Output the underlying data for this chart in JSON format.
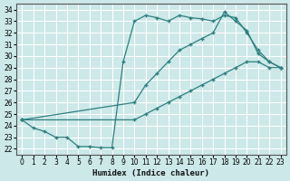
{
  "xlabel": "Humidex (Indice chaleur)",
  "bg_color": "#cce8e8",
  "grid_color": "#ffffff",
  "line_color": "#2d7f7f",
  "xlim": [
    -0.5,
    23.5
  ],
  "ylim": [
    21.5,
    34.5
  ],
  "xticks": [
    0,
    1,
    2,
    3,
    4,
    5,
    6,
    7,
    8,
    9,
    10,
    11,
    12,
    13,
    14,
    15,
    16,
    17,
    18,
    19,
    20,
    21,
    22,
    23
  ],
  "yticks": [
    22,
    23,
    24,
    25,
    26,
    27,
    28,
    29,
    30,
    31,
    32,
    33,
    34
  ],
  "line1_x": [
    0,
    1,
    2,
    3,
    4,
    5,
    6,
    7,
    8,
    9,
    10,
    11,
    12,
    13,
    14,
    15,
    16,
    17,
    18,
    19,
    20,
    21,
    22,
    23
  ],
  "line1_y": [
    24.5,
    23.8,
    23.5,
    23.0,
    23.0,
    22.2,
    22.2,
    22.1,
    22.1,
    29.5,
    33.0,
    33.5,
    33.3,
    33.0,
    33.5,
    33.3,
    33.2,
    33.0,
    33.5,
    33.3,
    32.0,
    30.5,
    29.5,
    29.0
  ],
  "line2_x": [
    0,
    10,
    11,
    12,
    13,
    14,
    15,
    16,
    17,
    18,
    19,
    20,
    21,
    22,
    23
  ],
  "line2_y": [
    24.5,
    26.0,
    27.5,
    28.5,
    29.5,
    30.5,
    31.0,
    31.5,
    32.0,
    33.8,
    33.0,
    32.2,
    30.2,
    29.5,
    29.0
  ],
  "line3_x": [
    0,
    10,
    11,
    12,
    13,
    14,
    15,
    16,
    17,
    18,
    19,
    20,
    21,
    22,
    23
  ],
  "line3_y": [
    24.5,
    24.5,
    25.0,
    25.5,
    26.0,
    26.5,
    27.0,
    27.5,
    28.0,
    28.5,
    29.0,
    29.5,
    29.5,
    29.0,
    29.0
  ]
}
